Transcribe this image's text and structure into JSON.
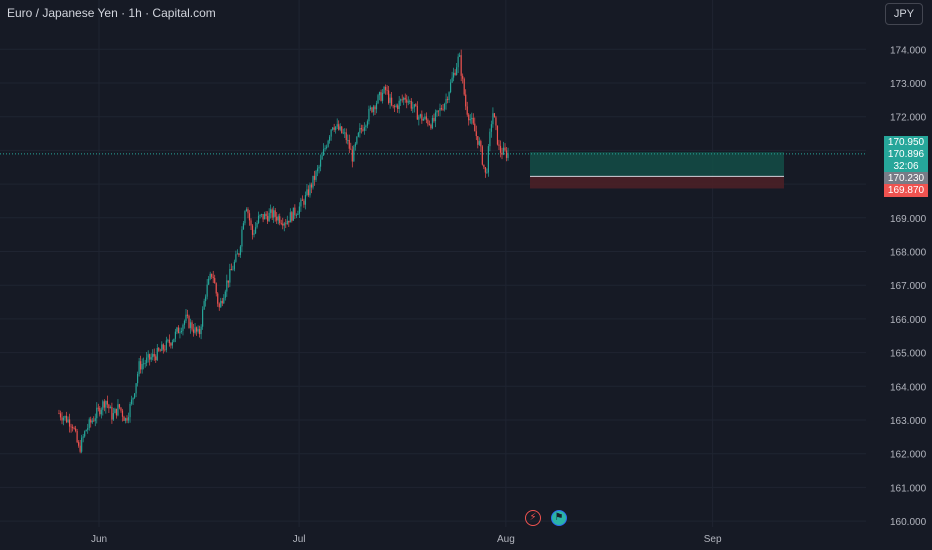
{
  "header": {
    "title": "Euro / Japanese Yen · 1h · Capital.com",
    "currency_button": "JPY"
  },
  "colors": {
    "background": "#161a25",
    "up": "#26a69a",
    "down": "#ef5350",
    "grid": "#1f2431",
    "text": "#b2b5be",
    "profit_zone": "#134d46",
    "loss_zone": "#4a2027"
  },
  "price_tags": {
    "target_price": "170.950",
    "current_price": "170.896",
    "countdown": "32:06",
    "entry_price": "170.230",
    "stop_price": "169.870"
  },
  "position_tool": {
    "type": "long",
    "target": 170.95,
    "entry": 170.23,
    "stop": 169.87
  },
  "event_icons": [
    "lightning-icon",
    "flag-icon"
  ],
  "chart_data": {
    "type": "candlestick",
    "title": "Euro / Japanese Yen · 1h · Capital.com",
    "x_ticks": [
      "Jun",
      "Jul",
      "Aug",
      "Sep"
    ],
    "y_ticks": [
      "160.000",
      "161.000",
      "162.000",
      "163.000",
      "164.000",
      "165.000",
      "166.000",
      "167.000",
      "168.000",
      "169.000",
      "170.000",
      "171.000",
      "172.000",
      "173.000",
      "174.000"
    ],
    "ylim": [
      159.9,
      175.0
    ],
    "current_price": 170.896,
    "grid": true,
    "close_path": [
      [
        "May 26",
        163.2
      ],
      [
        "May 28",
        162.9
      ],
      [
        "May 29",
        162.1
      ],
      [
        "May 30",
        162.7
      ],
      [
        "Jun 2",
        163.6
      ],
      [
        "Jun 3",
        163.1
      ],
      [
        "Jun 4",
        163.4
      ],
      [
        "Jun 5",
        163.0
      ],
      [
        "Jun 6",
        163.6
      ],
      [
        "Jun 7",
        164.6
      ],
      [
        "Jun 10",
        165.0
      ],
      [
        "Jun 12",
        165.4
      ],
      [
        "Jun 14",
        166.0
      ],
      [
        "Jun 16",
        165.5
      ],
      [
        "Jun 17",
        166.8
      ],
      [
        "Jun 18",
        167.4
      ],
      [
        "Jun 19",
        166.3
      ],
      [
        "Jun 20",
        167.0
      ],
      [
        "Jun 22",
        168.0
      ],
      [
        "Jun 23",
        169.5
      ],
      [
        "Jun 24",
        168.5
      ],
      [
        "Jun 25",
        169.0
      ],
      [
        "Jun 27",
        169.1
      ],
      [
        "Jun 29",
        168.9
      ],
      [
        "Jul 1",
        169.3
      ],
      [
        "Jul 2",
        169.6
      ],
      [
        "Jul 4",
        170.5
      ],
      [
        "Jul 6",
        171.8
      ],
      [
        "Jul 8",
        171.4
      ],
      [
        "Jul 9",
        170.8
      ],
      [
        "Jul 10",
        171.5
      ],
      [
        "Jul 12",
        172.3
      ],
      [
        "Jul 14",
        172.8
      ],
      [
        "Jul 15",
        172.2
      ],
      [
        "Jul 17",
        172.6
      ],
      [
        "Jul 19",
        172.0
      ],
      [
        "Jul 21",
        171.8
      ],
      [
        "Jul 23",
        172.5
      ],
      [
        "Jul 25",
        173.8
      ],
      [
        "Jul 26",
        172.3
      ],
      [
        "Jul 28",
        171.2
      ],
      [
        "Jul 29",
        170.2
      ],
      [
        "Jul 30",
        172.2
      ],
      [
        "Jul 31",
        171.0
      ],
      [
        "Aug 1",
        170.9
      ]
    ]
  }
}
